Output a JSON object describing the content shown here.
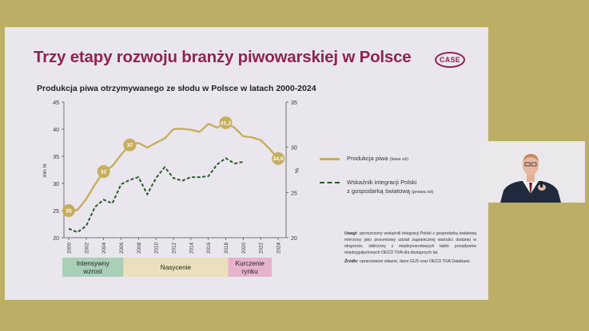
{
  "slide": {
    "title": "Trzy etapy rozwoju branży piwowarskiej w Polsce",
    "logo_text": "CASE",
    "chart_title": "Produkcja piwa otrzymywanego ze słodu w Polsce w latach 2000-2024",
    "legend": {
      "production_label": "Produkcja piwa",
      "production_note": "(lewa oś)",
      "integration_label_line1": "Wskaźnik integracji Polski",
      "integration_label_line2": "z gospodarką światową",
      "integration_note": "(prawa oś)"
    },
    "notes": {
      "uwagi_label": "Uwagi",
      "uwagi_text": ": uproszczony wskaźnik integracji Polski z gospodarką światową mierzony jako procentowy udział zagranicznej wartości dodanej w eksporcie, obliczony z międzynarodowych tablic przepływów międzygałęziowych OECD TiVA dla dostępnych lat.",
      "zrodlo_label": "Źródło",
      "zrodlo_text": ": opracowanie własne, dane GUS oraz OECD TiVA Database."
    }
  },
  "colors": {
    "background": "#bdae66",
    "slide": "#eae6ee",
    "title": "#8e2450",
    "production_line": "#c7ae5e",
    "integration_line": "#2d5b2c",
    "phase1": "#a9cfb7",
    "phase2": "#ebe0bd",
    "phase3": "#e7b3cc"
  },
  "chart_data": {
    "type": "line",
    "title": "Produkcja piwa otrzymywanego ze słodu w Polsce w latach 2000-2024",
    "ylabel": "mln hl",
    "y2label": "%",
    "ylim": [
      20,
      45
    ],
    "y2lim": [
      20,
      35
    ],
    "yticks": [
      "20",
      "25",
      "30",
      "35",
      "40",
      "45"
    ],
    "y2ticks": [
      "20",
      "25",
      "30",
      "35"
    ],
    "xticks": [
      "2000",
      "2002",
      "2004",
      "2006",
      "2008",
      "2010",
      "2012",
      "2014",
      "2016",
      "2018",
      "2020",
      "2022",
      "2024"
    ],
    "series": [
      {
        "name": "Produkcja piwa",
        "axis": "left",
        "style": "solid",
        "x": [
          2000,
          2001,
          2002,
          2003,
          2004,
          2005,
          2006,
          2007,
          2008,
          2009,
          2010,
          2011,
          2012,
          2013,
          2014,
          2015,
          2016,
          2017,
          2018,
          2019,
          2020,
          2021,
          2022,
          2023,
          2024
        ],
        "values": [
          25,
          25.1,
          27.1,
          29.8,
          32.2,
          33.2,
          35.3,
          37.1,
          37.5,
          36.6,
          37.5,
          38.3,
          40,
          40.1,
          39.9,
          39.5,
          41,
          40.3,
          41.2,
          40.3,
          38.7,
          38.5,
          38,
          36.4,
          34.6
        ]
      },
      {
        "name": "Wskaźnik integracji Polski z gospodarką światową",
        "axis": "right",
        "style": "dashed",
        "x": [
          2000,
          2001,
          2002,
          2003,
          2004,
          2005,
          2006,
          2007,
          2008,
          2009,
          2010,
          2011,
          2012,
          2013,
          2014,
          2015,
          2016,
          2017,
          2018,
          2019,
          2020
        ],
        "values": [
          21,
          20.6,
          21.3,
          23.4,
          24.2,
          23.8,
          25.9,
          26.4,
          26.7,
          24.8,
          26.6,
          27.8,
          26.6,
          26.3,
          26.7,
          26.7,
          26.8,
          28.1,
          28.8,
          28.2,
          28.4
        ]
      }
    ],
    "data_labels": [
      {
        "x": 2000,
        "series": 0,
        "text": "25"
      },
      {
        "x": 2004,
        "series": 0,
        "text": "32"
      },
      {
        "x": 2007,
        "series": 0,
        "text": "37"
      },
      {
        "x": 2018,
        "series": 0,
        "text": "41,2"
      },
      {
        "x": 2024,
        "series": 0,
        "text": "34,6"
      }
    ],
    "phases": [
      {
        "label_line1": "Intensywny",
        "label_line2": "wzrost",
        "from": 2000,
        "to": 2007
      },
      {
        "label_line1": "Nasycenie",
        "label_line2": "",
        "from": 2007,
        "to": 2019
      },
      {
        "label_line1": "Kurczenie",
        "label_line2": "rynku",
        "from": 2019,
        "to": 2024
      }
    ]
  }
}
